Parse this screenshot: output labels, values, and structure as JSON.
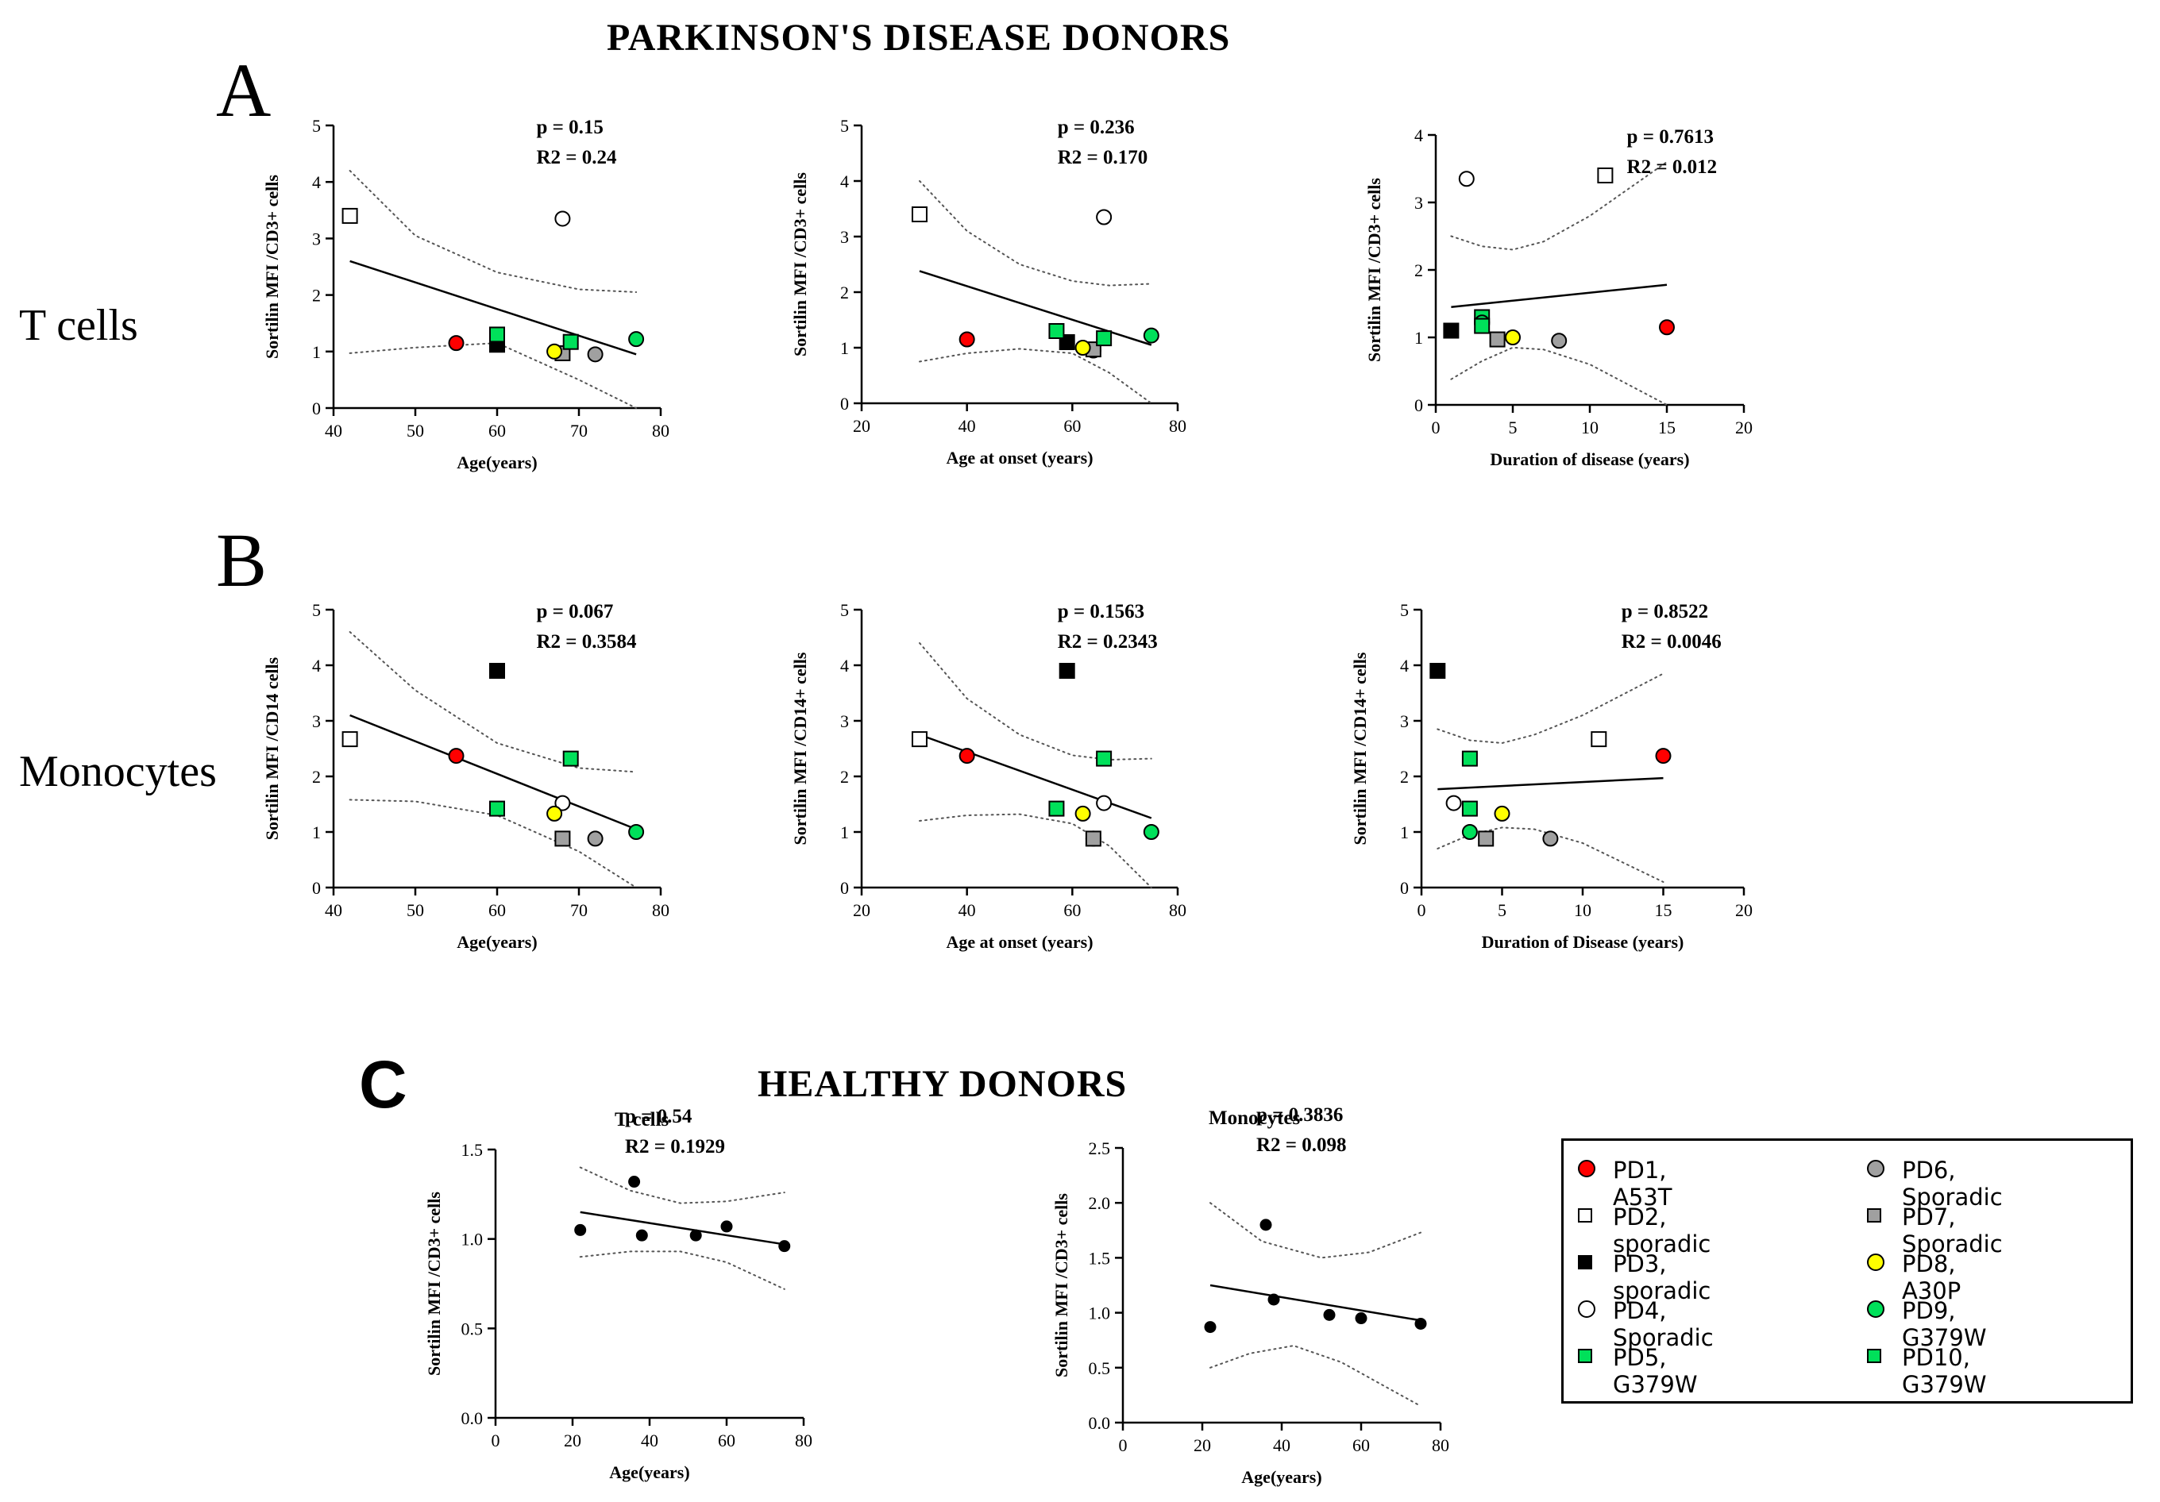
{
  "figure": {
    "title_pd": "PARKINSON'S DISEASE DONORS",
    "title_healthy": "HEALTHY DONORS",
    "panel_letters": [
      "A",
      "B",
      "C"
    ],
    "row_labels": [
      "T cells",
      "Monocytes"
    ]
  },
  "donors": [
    {
      "id": "PD1",
      "label": "PD1, A53T",
      "shape": "circle",
      "color": "#ff0000"
    },
    {
      "id": "PD2",
      "label": "PD2, sporadic",
      "shape": "square",
      "color": "#ffffff"
    },
    {
      "id": "PD3",
      "label": "PD3, sporadic",
      "shape": "square",
      "color": "#000000"
    },
    {
      "id": "PD4",
      "label": "PD4, Sporadic",
      "shape": "circle",
      "color": "#ffffff"
    },
    {
      "id": "PD5",
      "label": "PD5, G379W",
      "shape": "square",
      "color": "#00e05a"
    },
    {
      "id": "PD6",
      "label": "PD6, Sporadic",
      "shape": "circle",
      "color": "#a0a0a0"
    },
    {
      "id": "PD7",
      "label": "PD7, Sporadic",
      "shape": "square",
      "color": "#a0a0a0"
    },
    {
      "id": "PD8",
      "label": "PD8, A30P",
      "shape": "circle",
      "color": "#ffff00"
    },
    {
      "id": "PD9",
      "label": "PD9, G379W",
      "shape": "circle",
      "color": "#00e05a"
    },
    {
      "id": "PD10",
      "label": "PD10, G379W",
      "shape": "square",
      "color": "#00e05a"
    }
  ],
  "chart_data": [
    {
      "id": "A1",
      "type": "scatter",
      "xlabel": "Age(years)",
      "ylabel": "Sortilin MFI /CD3+ cells",
      "xlim": [
        40,
        80
      ],
      "ylim": [
        0,
        5
      ],
      "xticks": [
        "40",
        "50",
        "60",
        "70",
        "80"
      ],
      "yticks": [
        "0",
        "1",
        "2",
        "3",
        "4",
        "5"
      ],
      "stat_p": "p = 0.15",
      "stat_r": "R2 = 0.24",
      "points": [
        {
          "donor": "PD1",
          "x": 55,
          "y": 1.15
        },
        {
          "donor": "PD2",
          "x": 42,
          "y": 3.4
        },
        {
          "donor": "PD3",
          "x": 60,
          "y": 1.12
        },
        {
          "donor": "PD4",
          "x": 68,
          "y": 3.35
        },
        {
          "donor": "PD5",
          "x": 60,
          "y": 1.3
        },
        {
          "donor": "PD6",
          "x": 72,
          "y": 0.95
        },
        {
          "donor": "PD7",
          "x": 68,
          "y": 0.97
        },
        {
          "donor": "PD8",
          "x": 67,
          "y": 1.0
        },
        {
          "donor": "PD9",
          "x": 77,
          "y": 1.22
        },
        {
          "donor": "PD10",
          "x": 69,
          "y": 1.17
        }
      ],
      "fit": {
        "x": [
          42,
          77
        ],
        "y": [
          2.6,
          0.95
        ]
      },
      "ci_upper": [
        [
          42,
          4.2
        ],
        [
          50,
          3.05
        ],
        [
          60,
          2.4
        ],
        [
          70,
          2.1
        ],
        [
          77,
          2.05
        ]
      ],
      "ci_lower": [
        [
          42,
          0.97
        ],
        [
          50,
          1.07
        ],
        [
          60,
          1.15
        ],
        [
          70,
          0.5
        ],
        [
          77,
          0.0
        ]
      ]
    },
    {
      "id": "A2",
      "type": "scatter",
      "xlabel": "Age at onset (years)",
      "ylabel": "Sortilin MFI /CD3+ cells",
      "xlim": [
        20,
        80
      ],
      "ylim": [
        0,
        5
      ],
      "xticks": [
        "20",
        "40",
        "60",
        "80"
      ],
      "yticks": [
        "0",
        "1",
        "2",
        "3",
        "4",
        "5"
      ],
      "stat_p": "p = 0.236",
      "stat_r": "R2 = 0.170",
      "points": [
        {
          "donor": "PD1",
          "x": 40,
          "y": 1.15
        },
        {
          "donor": "PD2",
          "x": 31,
          "y": 3.4
        },
        {
          "donor": "PD3",
          "x": 59,
          "y": 1.1
        },
        {
          "donor": "PD4",
          "x": 66,
          "y": 3.35
        },
        {
          "donor": "PD5",
          "x": 57,
          "y": 1.3
        },
        {
          "donor": "PD6",
          "x": 64,
          "y": 0.95
        },
        {
          "donor": "PD7",
          "x": 64,
          "y": 0.97
        },
        {
          "donor": "PD8",
          "x": 62,
          "y": 1.0
        },
        {
          "donor": "PD9",
          "x": 75,
          "y": 1.22
        },
        {
          "donor": "PD10",
          "x": 66,
          "y": 1.17
        }
      ],
      "fit": {
        "x": [
          31,
          75
        ],
        "y": [
          2.38,
          1.05
        ]
      },
      "ci_upper": [
        [
          31,
          4.0
        ],
        [
          40,
          3.1
        ],
        [
          50,
          2.5
        ],
        [
          60,
          2.2
        ],
        [
          67,
          2.12
        ],
        [
          75,
          2.15
        ]
      ],
      "ci_lower": [
        [
          31,
          0.75
        ],
        [
          40,
          0.9
        ],
        [
          50,
          0.98
        ],
        [
          60,
          0.9
        ],
        [
          67,
          0.55
        ],
        [
          75,
          0.0
        ]
      ]
    },
    {
      "id": "A3",
      "type": "scatter",
      "xlabel": "Duration of disease (years)",
      "ylabel": "Sortilin MFI /CD3+ cells",
      "xlim": [
        0,
        20
      ],
      "ylim": [
        0,
        4
      ],
      "xticks": [
        "0",
        "5",
        "10",
        "15",
        "20"
      ],
      "yticks": [
        "0",
        "1",
        "2",
        "3",
        "4"
      ],
      "stat_p": "p = 0.7613",
      "stat_r": "R2 = 0.012",
      "points": [
        {
          "donor": "PD1",
          "x": 15,
          "y": 1.15
        },
        {
          "donor": "PD2",
          "x": 11,
          "y": 3.4
        },
        {
          "donor": "PD3",
          "x": 1,
          "y": 1.1
        },
        {
          "donor": "PD4",
          "x": 2,
          "y": 3.35
        },
        {
          "donor": "PD5",
          "x": 3,
          "y": 1.3
        },
        {
          "donor": "PD6",
          "x": 8,
          "y": 0.95
        },
        {
          "donor": "PD7",
          "x": 4,
          "y": 0.97
        },
        {
          "donor": "PD8",
          "x": 5,
          "y": 1.0
        },
        {
          "donor": "PD9",
          "x": 3,
          "y": 1.22
        },
        {
          "donor": "PD10",
          "x": 3,
          "y": 1.17
        }
      ],
      "fit": {
        "x": [
          1,
          15
        ],
        "y": [
          1.45,
          1.78
        ]
      },
      "ci_upper": [
        [
          1,
          2.5
        ],
        [
          3,
          2.35
        ],
        [
          5,
          2.3
        ],
        [
          7,
          2.42
        ],
        [
          10,
          2.8
        ],
        [
          15,
          3.6
        ]
      ],
      "ci_lower": [
        [
          1,
          0.38
        ],
        [
          3,
          0.65
        ],
        [
          5,
          0.85
        ],
        [
          7,
          0.82
        ],
        [
          10,
          0.6
        ],
        [
          15,
          0.0
        ]
      ]
    },
    {
      "id": "B1",
      "type": "scatter",
      "xlabel": "Age(years)",
      "ylabel": "Sortilin MFI /CD14 cells",
      "xlim": [
        40,
        80
      ],
      "ylim": [
        0,
        5
      ],
      "xticks": [
        "40",
        "50",
        "60",
        "70",
        "80"
      ],
      "yticks": [
        "0",
        "1",
        "2",
        "3",
        "4",
        "5"
      ],
      "stat_p": "p = 0.067",
      "stat_r": "R2 = 0.3584",
      "points": [
        {
          "donor": "PD1",
          "x": 55,
          "y": 2.37
        },
        {
          "donor": "PD2",
          "x": 42,
          "y": 2.67
        },
        {
          "donor": "PD3",
          "x": 60,
          "y": 3.9
        },
        {
          "donor": "PD4",
          "x": 68,
          "y": 1.52
        },
        {
          "donor": "PD5",
          "x": 60,
          "y": 1.42
        },
        {
          "donor": "PD6",
          "x": 72,
          "y": 0.88
        },
        {
          "donor": "PD7",
          "x": 68,
          "y": 0.88
        },
        {
          "donor": "PD8",
          "x": 67,
          "y": 1.33
        },
        {
          "donor": "PD9",
          "x": 77,
          "y": 1.0
        },
        {
          "donor": "PD10",
          "x": 69,
          "y": 2.32
        }
      ],
      "fit": {
        "x": [
          42,
          77
        ],
        "y": [
          3.1,
          1.05
        ]
      },
      "ci_upper": [
        [
          42,
          4.6
        ],
        [
          50,
          3.55
        ],
        [
          60,
          2.6
        ],
        [
          70,
          2.15
        ],
        [
          77,
          2.08
        ]
      ],
      "ci_lower": [
        [
          42,
          1.58
        ],
        [
          50,
          1.55
        ],
        [
          60,
          1.3
        ],
        [
          70,
          0.65
        ],
        [
          77,
          0.0
        ]
      ]
    },
    {
      "id": "B2",
      "type": "scatter",
      "xlabel": "Age at onset (years)",
      "ylabel": "Sortilin MFI /CD14+ cells",
      "xlim": [
        20,
        80
      ],
      "ylim": [
        0,
        5
      ],
      "xticks": [
        "20",
        "40",
        "60",
        "80"
      ],
      "yticks": [
        "0",
        "1",
        "2",
        "3",
        "4",
        "5"
      ],
      "stat_p": "p = 0.1563",
      "stat_r": "R2 = 0.2343",
      "points": [
        {
          "donor": "PD1",
          "x": 40,
          "y": 2.37
        },
        {
          "donor": "PD2",
          "x": 31,
          "y": 2.67
        },
        {
          "donor": "PD3",
          "x": 59,
          "y": 3.9
        },
        {
          "donor": "PD4",
          "x": 66,
          "y": 1.52
        },
        {
          "donor": "PD5",
          "x": 57,
          "y": 1.42
        },
        {
          "donor": "PD6",
          "x": 64,
          "y": 0.88
        },
        {
          "donor": "PD7",
          "x": 64,
          "y": 0.88
        },
        {
          "donor": "PD8",
          "x": 62,
          "y": 1.33
        },
        {
          "donor": "PD9",
          "x": 75,
          "y": 1.0
        },
        {
          "donor": "PD10",
          "x": 66,
          "y": 2.32
        }
      ],
      "fit": {
        "x": [
          31,
          75
        ],
        "y": [
          2.75,
          1.25
        ]
      },
      "ci_upper": [
        [
          31,
          4.4
        ],
        [
          40,
          3.4
        ],
        [
          50,
          2.75
        ],
        [
          60,
          2.38
        ],
        [
          67,
          2.3
        ],
        [
          75,
          2.32
        ]
      ],
      "ci_lower": [
        [
          31,
          1.2
        ],
        [
          40,
          1.3
        ],
        [
          50,
          1.32
        ],
        [
          60,
          1.15
        ],
        [
          67,
          0.75
        ],
        [
          75,
          0.0
        ]
      ]
    },
    {
      "id": "B3",
      "type": "scatter",
      "xlabel": "Duration of Disease (years)",
      "ylabel": "Sortilin MFI /CD14+ cells",
      "xlim": [
        0,
        20
      ],
      "ylim": [
        0,
        5
      ],
      "xticks": [
        "0",
        "5",
        "10",
        "15",
        "20"
      ],
      "yticks": [
        "0",
        "1",
        "2",
        "3",
        "4",
        "5"
      ],
      "stat_p": "p = 0.8522",
      "stat_r": "R2 = 0.0046",
      "points": [
        {
          "donor": "PD1",
          "x": 15,
          "y": 2.37
        },
        {
          "donor": "PD2",
          "x": 11,
          "y": 2.67
        },
        {
          "donor": "PD3",
          "x": 1,
          "y": 3.9
        },
        {
          "donor": "PD4",
          "x": 2,
          "y": 1.52
        },
        {
          "donor": "PD5",
          "x": 3,
          "y": 1.42
        },
        {
          "donor": "PD6",
          "x": 8,
          "y": 0.88
        },
        {
          "donor": "PD7",
          "x": 4,
          "y": 0.88
        },
        {
          "donor": "PD8",
          "x": 5,
          "y": 1.33
        },
        {
          "donor": "PD9",
          "x": 3,
          "y": 1.0
        },
        {
          "donor": "PD10",
          "x": 3,
          "y": 2.32
        }
      ],
      "fit": {
        "x": [
          1,
          15
        ],
        "y": [
          1.77,
          1.97
        ]
      },
      "ci_upper": [
        [
          1,
          2.85
        ],
        [
          3,
          2.65
        ],
        [
          5,
          2.6
        ],
        [
          7,
          2.75
        ],
        [
          10,
          3.1
        ],
        [
          15,
          3.85
        ]
      ],
      "ci_lower": [
        [
          1,
          0.7
        ],
        [
          3,
          0.95
        ],
        [
          5,
          1.08
        ],
        [
          7,
          1.05
        ],
        [
          10,
          0.8
        ],
        [
          15,
          0.1
        ]
      ]
    },
    {
      "id": "C1",
      "type": "scatter",
      "xlabel": "Age(years)",
      "ylabel": "Sortilin MFI /CD3+ cells",
      "subtitle": "T cells",
      "xlim": [
        0,
        80
      ],
      "ylim": [
        0,
        1.5
      ],
      "xticks": [
        "0",
        "20",
        "40",
        "60",
        "80"
      ],
      "yticks": [
        "0.0",
        "0.5",
        "1.0",
        "1.5"
      ],
      "stat_p": "p = 0.54",
      "stat_r": "R2 = 0.1929",
      "points": [
        {
          "x": 22,
          "y": 1.05
        },
        {
          "x": 36,
          "y": 1.32
        },
        {
          "x": 38,
          "y": 1.02
        },
        {
          "x": 52,
          "y": 1.02
        },
        {
          "x": 60,
          "y": 1.07
        },
        {
          "x": 75,
          "y": 0.96
        }
      ],
      "fit": {
        "x": [
          22,
          75
        ],
        "y": [
          1.15,
          0.97
        ]
      },
      "ci_upper": [
        [
          22,
          1.4
        ],
        [
          35,
          1.27
        ],
        [
          48,
          1.2
        ],
        [
          60,
          1.21
        ],
        [
          75,
          1.26
        ]
      ],
      "ci_lower": [
        [
          22,
          0.9
        ],
        [
          35,
          0.93
        ],
        [
          48,
          0.93
        ],
        [
          60,
          0.87
        ],
        [
          75,
          0.72
        ]
      ]
    },
    {
      "id": "C2",
      "type": "scatter",
      "xlabel": "Age(years)",
      "ylabel": "Sortilin MFI /CD3+ cells",
      "subtitle": "Monocytes",
      "xlim": [
        0,
        80
      ],
      "ylim": [
        0,
        2.5
      ],
      "xticks": [
        "0",
        "20",
        "40",
        "60",
        "80"
      ],
      "yticks": [
        "0.0",
        "0.5",
        "1.0",
        "1.5",
        "2.0",
        "2.5"
      ],
      "stat_p": "p = 0.3836",
      "stat_r": "R2 = 0.098",
      "points": [
        {
          "x": 22,
          "y": 0.87
        },
        {
          "x": 36,
          "y": 1.8
        },
        {
          "x": 38,
          "y": 1.12
        },
        {
          "x": 52,
          "y": 0.98
        },
        {
          "x": 60,
          "y": 0.95
        },
        {
          "x": 75,
          "y": 0.9
        }
      ],
      "fit": {
        "x": [
          22,
          75
        ],
        "y": [
          1.25,
          0.93
        ]
      },
      "ci_upper": [
        [
          22,
          2.0
        ],
        [
          35,
          1.65
        ],
        [
          50,
          1.5
        ],
        [
          62,
          1.55
        ],
        [
          75,
          1.73
        ]
      ],
      "ci_lower": [
        [
          22,
          0.5
        ],
        [
          32,
          0.63
        ],
        [
          43,
          0.7
        ],
        [
          55,
          0.55
        ],
        [
          65,
          0.35
        ],
        [
          75,
          0.15
        ]
      ]
    }
  ]
}
